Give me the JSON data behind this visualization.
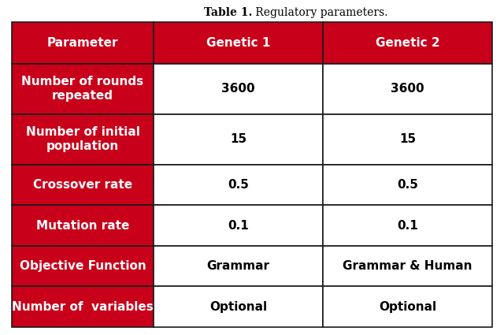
{
  "title_bold": "Table 1.",
  "title_regular": " Regulatory parameters.",
  "headers": [
    "Parameter",
    "Genetic 1",
    "Genetic 2"
  ],
  "rows": [
    [
      "Number of rounds\nrepeated",
      "3600",
      "3600"
    ],
    [
      "Number of initial\npopulation",
      "15",
      "15"
    ],
    [
      "Crossover rate",
      "0.5",
      "0.5"
    ],
    [
      "Mutation rate",
      "0.1",
      "0.1"
    ],
    [
      "Objective Function",
      "Grammar",
      "Grammar & Human"
    ],
    [
      "Number of  variables",
      "Optional",
      "Optional"
    ]
  ],
  "header_bg": "#C8001A",
  "left_col_bg": "#C8001A",
  "right_col_bg": "#FFFFFF",
  "header_text_color": "#FFFFFF",
  "left_text_color": "#FFFFFF",
  "right_text_color": "#000000",
  "border_color": "#1a1a1a",
  "fig_bg": "#FFFFFF",
  "title_fontsize": 10,
  "header_fontsize": 11,
  "cell_fontsize": 11
}
